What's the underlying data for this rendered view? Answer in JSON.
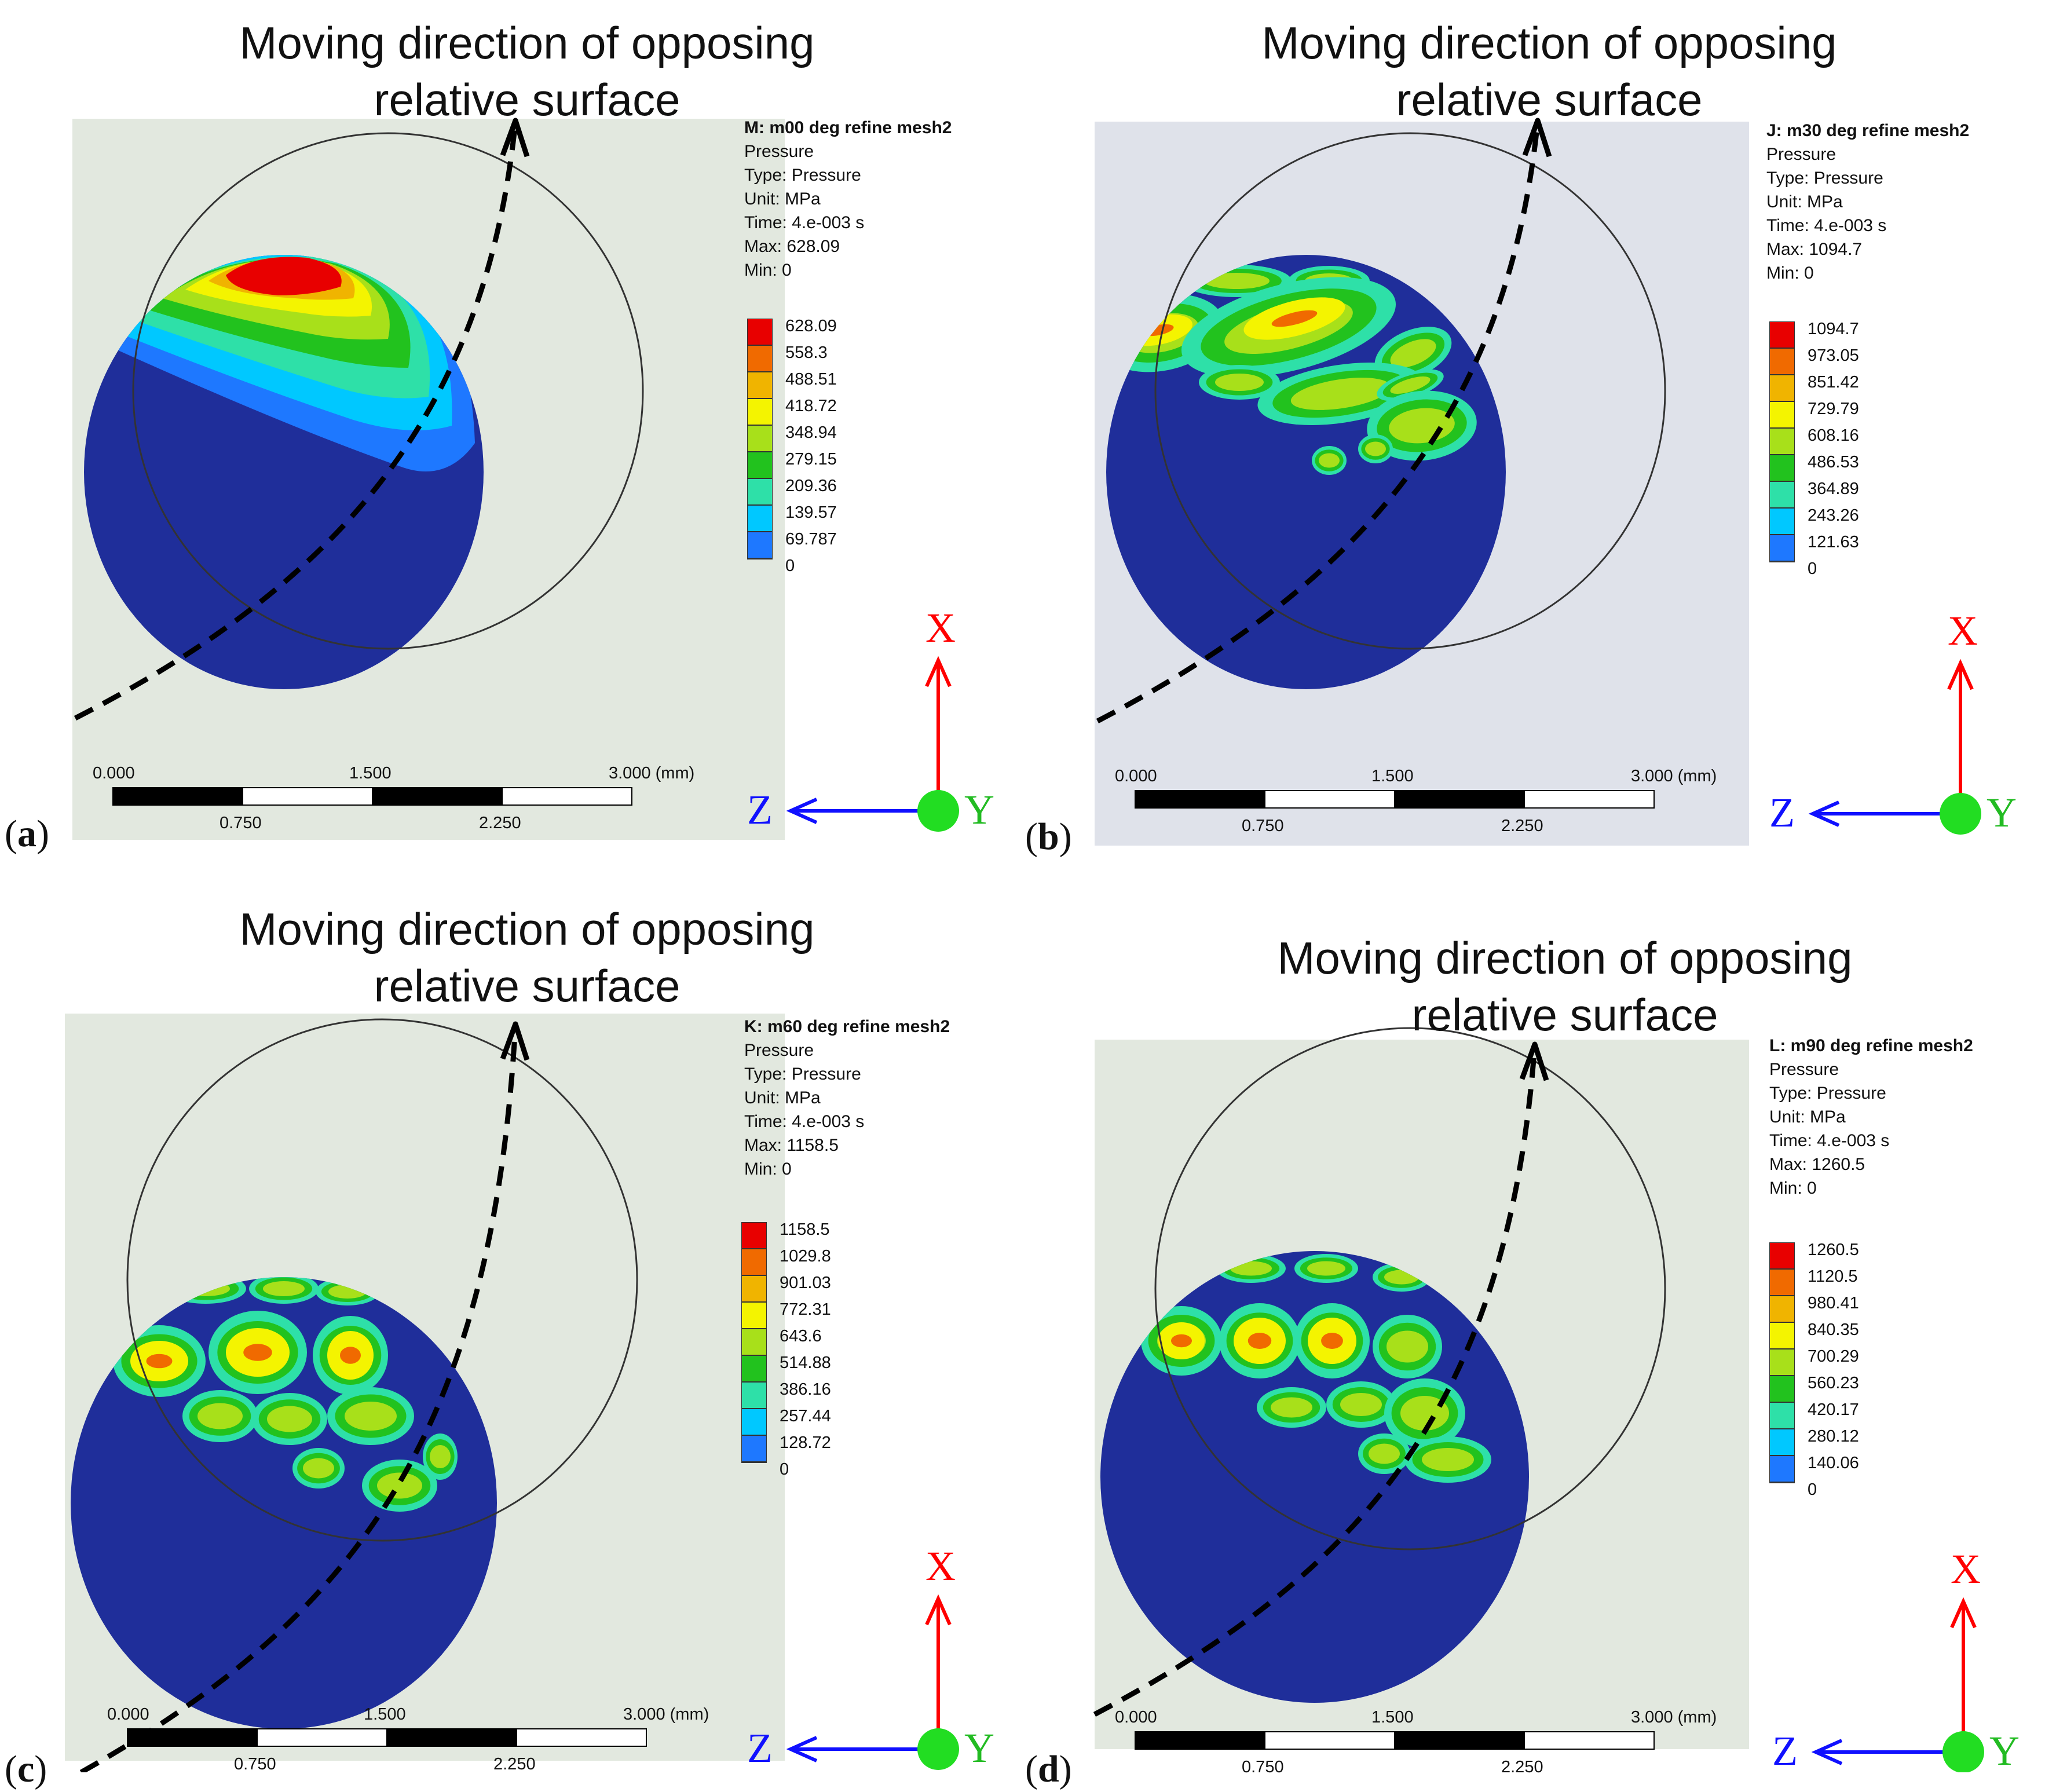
{
  "motion_title_line1": "Moving direction of opposing",
  "motion_title_line2": "relative surface",
  "legend_common": {
    "quantity": "Pressure",
    "type": "Type: Pressure",
    "unit": "Unit: MPa",
    "time": "Time: 4.e-003 s"
  },
  "scale": {
    "t0": "0.000",
    "t1": "0.750",
    "t2": "1.500",
    "t3": "2.250",
    "t4": "3.000 (mm)"
  },
  "axes": {
    "x": "X",
    "y": "Y",
    "z": "Z"
  },
  "colors": {
    "band_0": "#0a0aff",
    "band_1": "#1e78ff",
    "band_2": "#00c8ff",
    "band_3": "#2ee0a8",
    "band_4": "#22c21e",
    "band_5": "#a8e01a",
    "band_6": "#f4f400",
    "band_7": "#f0b400",
    "band_8": "#f06a00",
    "band_9": "#e80000",
    "sphere": "#1f2e9a",
    "panel_bg": "#e2e8df",
    "panel_bg_b": "#dfe2ea"
  },
  "panels": [
    {
      "letter": "a",
      "legend_title": "M: m00 deg refine mesh2",
      "max": "Max: 628.09",
      "min": "Min: 0",
      "levels": [
        "628.09",
        "558.3",
        "488.51",
        "418.72",
        "348.94",
        "279.15",
        "209.36",
        "139.57",
        "69.787",
        "0"
      ]
    },
    {
      "letter": "b",
      "legend_title": "J: m30 deg refine mesh2",
      "max": "Max: 1094.7",
      "min": "Min: 0",
      "levels": [
        "1094.7",
        "973.05",
        "851.42",
        "729.79",
        "608.16",
        "486.53",
        "364.89",
        "243.26",
        "121.63",
        "0"
      ]
    },
    {
      "letter": "c",
      "legend_title": "K: m60 deg refine mesh2",
      "max": "Max: 1158.5",
      "min": "Min: 0",
      "levels": [
        "1158.5",
        "1029.8",
        "901.03",
        "772.31",
        "643.6",
        "514.88",
        "386.16",
        "257.44",
        "128.72",
        "0"
      ]
    },
    {
      "letter": "d",
      "legend_title": "L: m90 deg refine mesh2",
      "max": "Max: 1260.5",
      "min": "Min: 0",
      "levels": [
        "1260.5",
        "1120.5",
        "980.41",
        "840.35",
        "700.29",
        "560.23",
        "420.17",
        "280.12",
        "140.06",
        "0"
      ]
    }
  ]
}
